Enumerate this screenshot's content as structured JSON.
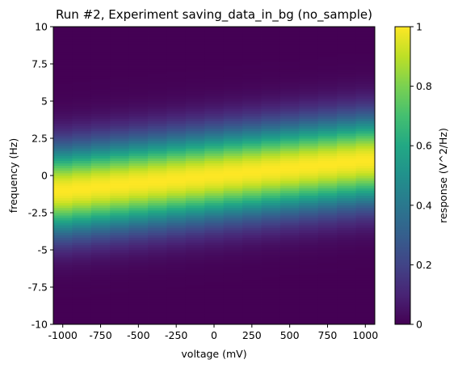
{
  "chart_data": {
    "type": "heatmap",
    "title": "Run #2, Experiment saving_data_in_bg (no_sample)",
    "xlabel": "voltage (mV)",
    "ylabel": "frequency (Hz)",
    "colorbar_label": "response (V^2/Hz)",
    "colormap": "viridis",
    "x_range": [
      -1062.5,
      1062.5
    ],
    "y_range": [
      -10,
      10
    ],
    "color_range": [
      0,
      1
    ],
    "x_ticks": [
      {
        "value": -1000,
        "label": "-1000"
      },
      {
        "value": -750,
        "label": "-750"
      },
      {
        "value": -500,
        "label": "-500"
      },
      {
        "value": -250,
        "label": "-250"
      },
      {
        "value": 0,
        "label": "0"
      },
      {
        "value": 250,
        "label": "250"
      },
      {
        "value": 500,
        "label": "500"
      },
      {
        "value": 750,
        "label": "750"
      },
      {
        "value": 1000,
        "label": "1000"
      }
    ],
    "y_ticks": [
      {
        "value": 10,
        "label": "10"
      },
      {
        "value": 7.5,
        "label": "7.5"
      },
      {
        "value": 5,
        "label": "5"
      },
      {
        "value": 2.5,
        "label": "2.5"
      },
      {
        "value": 0,
        "label": "0"
      },
      {
        "value": -2.5,
        "label": "-2.5"
      },
      {
        "value": -5,
        "label": "-5"
      },
      {
        "value": -7.5,
        "label": "-7.5"
      },
      {
        "value": -10,
        "label": "-10"
      }
    ],
    "colorbar_ticks": [
      {
        "value": 1,
        "label": "1"
      },
      {
        "value": 0.8,
        "label": "0.8"
      },
      {
        "value": 0.6,
        "label": "0.6"
      },
      {
        "value": 0.4,
        "label": "0.4"
      },
      {
        "value": 0.2,
        "label": "0.2"
      },
      {
        "value": 0,
        "label": "0"
      }
    ],
    "voltage_columns": [
      -1000,
      -875,
      -750,
      -625,
      -500,
      -375,
      -250,
      -125,
      0,
      125,
      250,
      375,
      500,
      625,
      750,
      875,
      1000
    ],
    "peak_frequency_by_column": [
      -1.0,
      -0.88,
      -0.75,
      -0.63,
      -0.5,
      -0.38,
      -0.25,
      -0.13,
      0.0,
      0.13,
      0.25,
      0.38,
      0.5,
      0.63,
      0.75,
      0.88,
      1.0
    ],
    "peak_width_sigma_hz": 2.0
  }
}
